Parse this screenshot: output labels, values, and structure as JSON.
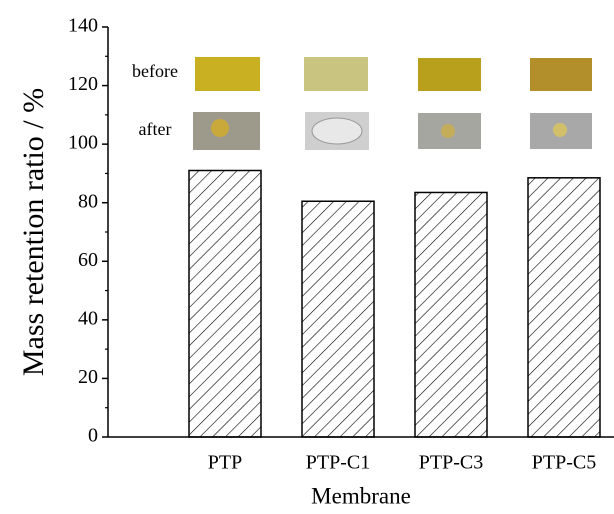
{
  "chart_data": {
    "type": "bar",
    "y_label": "Mass retention ratio / %",
    "x_label": "Membrane",
    "categories": [
      "PTP",
      "PTP-C1",
      "PTP-C3",
      "PTP-C5"
    ],
    "values": [
      91,
      80.5,
      83.5,
      88.5
    ],
    "color": "#000000",
    "ylim": [
      0,
      140
    ],
    "yticks": [
      0,
      20,
      40,
      60,
      80,
      100,
      120,
      140
    ],
    "annotations": [
      "before",
      "after"
    ]
  }
}
